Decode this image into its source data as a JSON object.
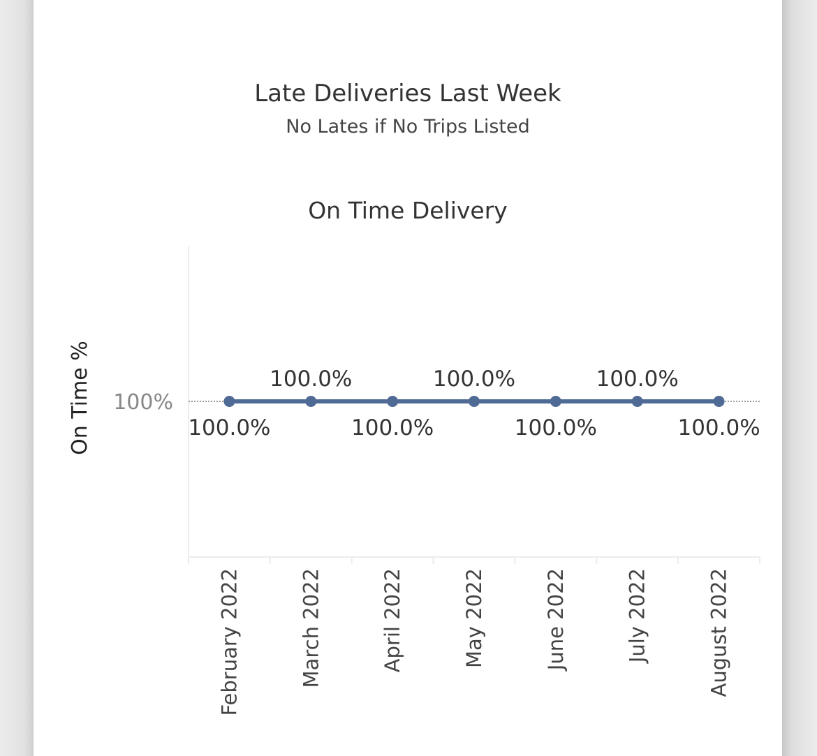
{
  "worksheet": {
    "late_title": "Late Deliveries Last Week",
    "late_subtitle": "No Lates if No Trips Listed"
  },
  "colors": {
    "line": "#4e6a95",
    "reference_line": "#9a9a9a",
    "gridline": "#ececec"
  },
  "chart_data": {
    "type": "line",
    "title": "On Time Delivery",
    "xlabel": "",
    "ylabel": "On Time %",
    "y_tick_labels": [
      "100%"
    ],
    "y_ticks": [
      100
    ],
    "ylim": [
      50,
      150
    ],
    "grid": false,
    "categories": [
      "February 2022",
      "March 2022",
      "April 2022",
      "May 2022",
      "June 2022",
      "July 2022",
      "August 2022"
    ],
    "series": [
      {
        "values": [
          100,
          100,
          100,
          100,
          100,
          100,
          100
        ],
        "data_labels": [
          "100.0%",
          "100.0%",
          "100.0%",
          "100.0%",
          "100.0%",
          "100.0%",
          "100.0%"
        ],
        "label_positions": [
          "below",
          "above",
          "below",
          "above",
          "below",
          "above",
          "below"
        ]
      }
    ]
  }
}
